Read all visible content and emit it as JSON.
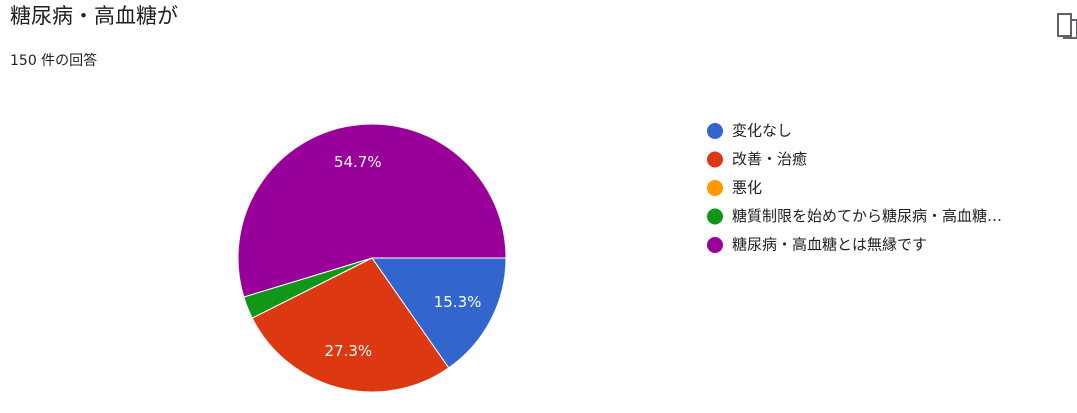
{
  "chart_data": {
    "type": "pie",
    "title": "糖尿病・高血糖が",
    "subtitle": "150 件の回答",
    "categories": [
      "変化なし",
      "改善・治癒",
      "悪化",
      "糖質制限を始めてから糖尿病・高血糖…",
      "糖尿病・高血糖とは無縁です"
    ],
    "values": [
      15.3,
      27.3,
      0,
      2.7,
      54.7
    ],
    "value_labels": [
      "15.3%",
      "27.3%",
      null,
      null,
      "54.7%"
    ],
    "colors": [
      "#3366cc",
      "#dc3912",
      "#ff9900",
      "#109618",
      "#990099"
    ],
    "legend": "right"
  }
}
